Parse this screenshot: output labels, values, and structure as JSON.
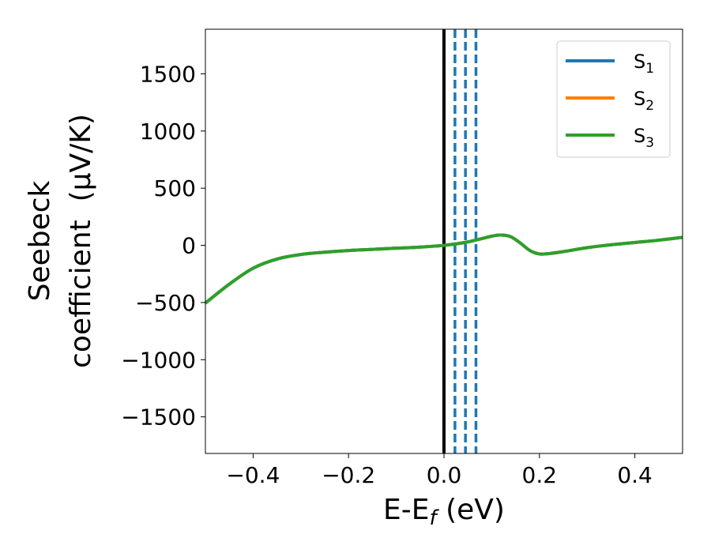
{
  "chart_data": {
    "type": "line",
    "xlabel": {
      "main": "E-E",
      "sub": "f",
      "unit": " (eV)"
    },
    "ylabel": {
      "line1": "Seebeck",
      "line2": "coefficient  (μV/K)"
    },
    "xlim": [
      -0.5,
      0.5
    ],
    "ylim": [
      -1820,
      1890
    ],
    "xticks": [
      -0.4,
      -0.2,
      0.0,
      0.2,
      0.4
    ],
    "xtick_labels": [
      "−0.4",
      "−0.2",
      "0.0",
      "0.2",
      "0.4"
    ],
    "yticks": [
      1500,
      1000,
      500,
      0,
      -500,
      -1000,
      -1500
    ],
    "ytick_labels": [
      "1500",
      "1000",
      "500",
      "0",
      "−500",
      "−1000",
      "−1500"
    ],
    "grid": false,
    "legend_position": "top-right",
    "series": [
      {
        "name": "S",
        "sub": "1",
        "color": "#1f77b4",
        "x": [
          -0.5,
          -0.45,
          -0.4,
          -0.35,
          -0.3,
          -0.25,
          -0.2,
          -0.15,
          -0.1,
          -0.05,
          0.0,
          0.05,
          0.1,
          0.12,
          0.14,
          0.16,
          0.18,
          0.2,
          0.22,
          0.25,
          0.3,
          0.35,
          0.4,
          0.45,
          0.5
        ],
        "y": [
          -505,
          -340,
          -200,
          -120,
          -80,
          -60,
          -45,
          -35,
          -25,
          -15,
          0,
          30,
          80,
          90,
          75,
          20,
          -45,
          -75,
          -72,
          -55,
          -20,
          5,
          25,
          45,
          70
        ]
      },
      {
        "name": "S",
        "sub": "2",
        "color": "#ff7f0e",
        "x": [
          -0.5,
          -0.45,
          -0.4,
          -0.35,
          -0.3,
          -0.25,
          -0.2,
          -0.15,
          -0.1,
          -0.05,
          0.0,
          0.05,
          0.1,
          0.12,
          0.14,
          0.16,
          0.18,
          0.2,
          0.22,
          0.25,
          0.3,
          0.35,
          0.4,
          0.45,
          0.5
        ],
        "y": [
          -505,
          -340,
          -200,
          -120,
          -80,
          -60,
          -45,
          -35,
          -25,
          -15,
          0,
          30,
          80,
          90,
          75,
          20,
          -45,
          -75,
          -72,
          -55,
          -20,
          5,
          25,
          45,
          70
        ]
      },
      {
        "name": "S",
        "sub": "3",
        "color": "#2ca02c",
        "x": [
          -0.5,
          -0.45,
          -0.4,
          -0.35,
          -0.3,
          -0.25,
          -0.2,
          -0.15,
          -0.1,
          -0.05,
          0.0,
          0.05,
          0.1,
          0.12,
          0.14,
          0.16,
          0.18,
          0.2,
          0.22,
          0.25,
          0.3,
          0.35,
          0.4,
          0.45,
          0.5
        ],
        "y": [
          -505,
          -340,
          -200,
          -120,
          -80,
          -60,
          -45,
          -35,
          -25,
          -15,
          0,
          30,
          80,
          90,
          75,
          20,
          -45,
          -75,
          -72,
          -55,
          -20,
          5,
          25,
          45,
          70
        ]
      }
    ],
    "reference_lines": [
      {
        "x": 0.0,
        "color": "#000000",
        "style": "solid"
      },
      {
        "x": 0.023,
        "color": "#1f77b4",
        "style": "dashed"
      },
      {
        "x": 0.045,
        "color": "#1f77b4",
        "style": "dashed"
      },
      {
        "x": 0.067,
        "color": "#1f77b4",
        "style": "dashed"
      }
    ]
  }
}
